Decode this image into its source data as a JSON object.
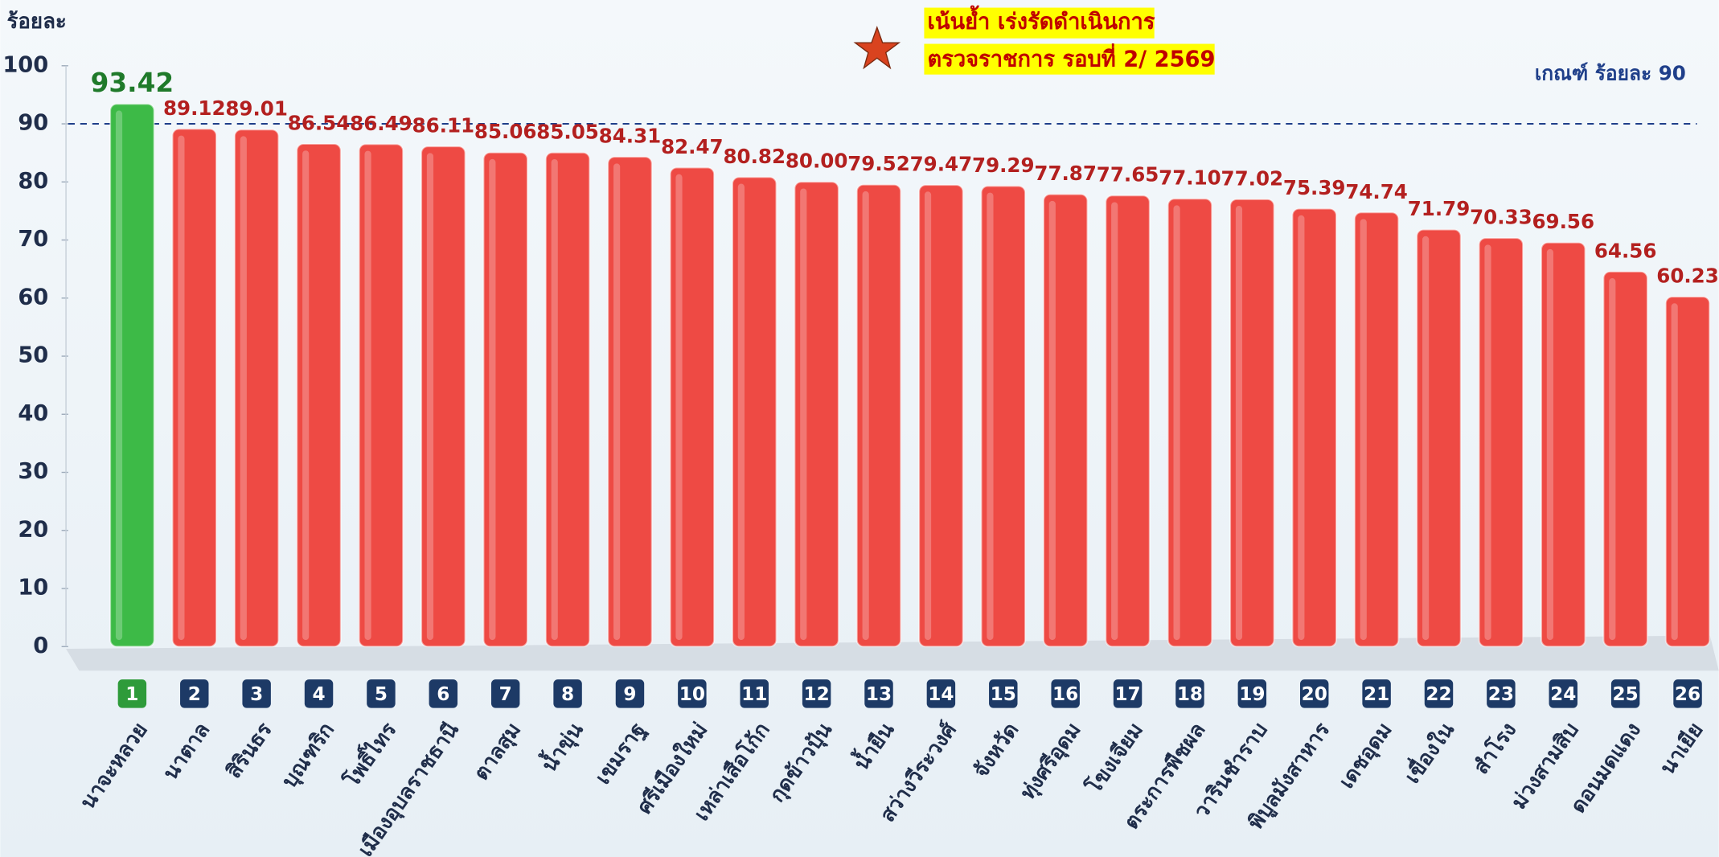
{
  "chart_data": {
    "type": "bar",
    "y_label": "ร้อยละ",
    "annotations": [
      "เน้นย้ำ เร่งรัดดำเนินการ",
      "ตรวจราชการ รอบที่  2/ 2569"
    ],
    "threshold": {
      "value": 90,
      "label": "เกณฑ์ ร้อยละ 90"
    },
    "ranks": [
      1,
      2,
      3,
      4,
      5,
      6,
      7,
      8,
      9,
      10,
      11,
      12,
      13,
      14,
      15,
      16,
      17,
      18,
      19,
      20,
      21,
      22,
      23,
      24,
      25,
      26
    ],
    "categories": [
      "นาจะหลวย",
      "นาตาล",
      "สิรินธร",
      "บุณฑริก",
      "โพธิ์ไทร",
      "เมืองอุบลราชธานี",
      "ตาลสุม",
      "น้ำขุ่น",
      "เขมราฐ",
      "ศรีเมืองใหม่",
      "เหล่าเสือโก้ก",
      "กุดข้าวปุ้น",
      "น้ำยืน",
      "สว่างวีระวงศ์",
      "จังหวัด",
      "ทุ่งศรีอุดม",
      "โขงเจียม",
      "ตระการพืชผล",
      "วารินชำราบ",
      "พิบูลมังสาหาร",
      "เดชอุดม",
      "เขื่องใน",
      "สำโรง",
      "ม่วงสามสิบ",
      "ดอนมดแดง",
      "นาเยีย"
    ],
    "values": [
      93.42,
      89.12,
      89.01,
      86.54,
      86.49,
      86.11,
      85.06,
      85.05,
      84.31,
      82.47,
      80.82,
      80.0,
      79.52,
      79.47,
      79.29,
      77.87,
      77.65,
      77.1,
      77.02,
      75.39,
      74.74,
      71.79,
      70.33,
      69.56,
      64.56,
      60.23
    ],
    "value_labels": [
      "93.42",
      "89.12",
      "89.01",
      "86.54",
      "86.49",
      "86.11",
      "85.06",
      "85.05",
      "84.31",
      "82.47",
      "80.82",
      "80.00",
      "79.52",
      "79.47",
      "79.29",
      "77.87",
      "77.65",
      "77.10",
      "77.02",
      "75.39",
      "74.74",
      "71.79",
      "70.33",
      "69.56",
      "64.56",
      "60.23"
    ],
    "colors": [
      "#3dba47",
      "#ee4a44",
      "#ee4a44",
      "#ee4a44",
      "#ee4a44",
      "#ee4a44",
      "#ee4a44",
      "#ee4a44",
      "#ee4a44",
      "#ee4a44",
      "#ee4a44",
      "#ee4a44",
      "#ee4a44",
      "#ee4a44",
      "#ee4a44",
      "#ee4a44",
      "#ee4a44",
      "#ee4a44",
      "#ee4a44",
      "#ee4a44",
      "#ee4a44",
      "#ee4a44",
      "#ee4a44",
      "#ee4a44",
      "#ee4a44",
      "#ee4a44"
    ],
    "ylim": [
      0,
      100
    ],
    "yticks": [
      0,
      10,
      20,
      30,
      40,
      50,
      60,
      70,
      80,
      90,
      100
    ]
  }
}
